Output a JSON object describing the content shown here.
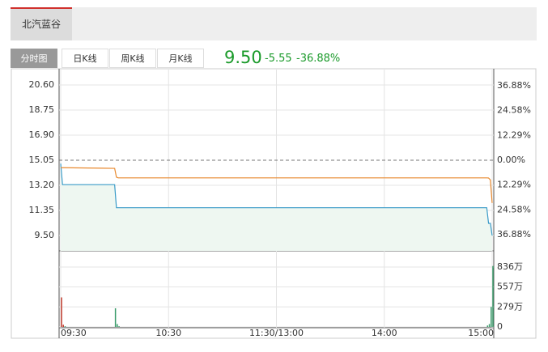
{
  "tabs": [
    "北汽蓝谷"
  ],
  "views": [
    "分时图",
    "日K线",
    "周K线",
    "月K线"
  ],
  "quote": {
    "price": "9.50",
    "change": "-5.55",
    "change_pct": "-36.88%"
  },
  "chart_data": [
    {
      "type": "line",
      "x": [
        "09:30",
        "09:31",
        "09:32",
        "10:00",
        "10:01",
        "10:02",
        "14:57",
        "14:58",
        "14:59",
        "15:00"
      ],
      "series": [
        {
          "color": "#3a9bc8",
          "values": [
            14.8,
            13.25,
            13.25,
            13.25,
            11.55,
            11.55,
            11.55,
            10.4,
            10.4,
            9.5
          ]
        },
        {
          "color": "#e8892e",
          "values": [
            14.5,
            14.5,
            14.5,
            14.45,
            13.8,
            13.75,
            13.75,
            13.74,
            13.6,
            11.9
          ]
        }
      ],
      "area_color": "#eef7f1",
      "ylim": [
        8.37,
        21.73
      ],
      "yticks": [
        {
          "value": 20.6,
          "label": "20.60"
        },
        18.75,
        {
          "value": 16.9,
          "label": "16.90"
        },
        15.05,
        {
          "value": 13.2,
          "label": "13.20"
        },
        11.35,
        {
          "value": 9.5,
          "label": "9.50"
        }
      ],
      "y2lim": [
        -44.9,
        44.9
      ],
      "y2ticks": [
        {
          "value": 36.88,
          "label": "36.88%"
        },
        {
          "value": 24.58,
          "label": "24.58%"
        },
        {
          "value": 12.29,
          "label": "12.29%"
        },
        {
          "value": 0,
          "label": "0.00%"
        },
        {
          "value": -12.29,
          "label": "12.29%"
        },
        {
          "value": -24.58,
          "label": "24.58%"
        },
        {
          "value": -36.88,
          "label": "36.88%"
        }
      ],
      "xticks": [
        "09:30",
        "10:30",
        "11:30/13:00",
        "14:00",
        "15:00"
      ],
      "grid": true
    },
    {
      "type": "bar",
      "x": [
        "09:30",
        "09:31",
        "09:32",
        "10:00",
        "10:01",
        "10:02",
        "14:57",
        "14:58",
        "14:59",
        "15:00"
      ],
      "values": [
        412,
        30,
        10,
        260,
        40,
        10,
        20,
        40,
        280,
        850
      ],
      "colors": [
        "#c0392b",
        "#c0392b",
        "#3a9b6a",
        "#3a9b6a",
        "#3a9b6a",
        "#3a9b6a",
        "#3a9b6a",
        "#3a9b6a",
        "#3a9b6a",
        "#3a9b6a"
      ],
      "ylim": [
        0,
        1050
      ],
      "yticks": [
        {
          "value": 836,
          "label": "836万"
        },
        {
          "value": 557,
          "label": "557万"
        },
        {
          "value": 279,
          "label": "279万"
        },
        0
      ]
    }
  ]
}
